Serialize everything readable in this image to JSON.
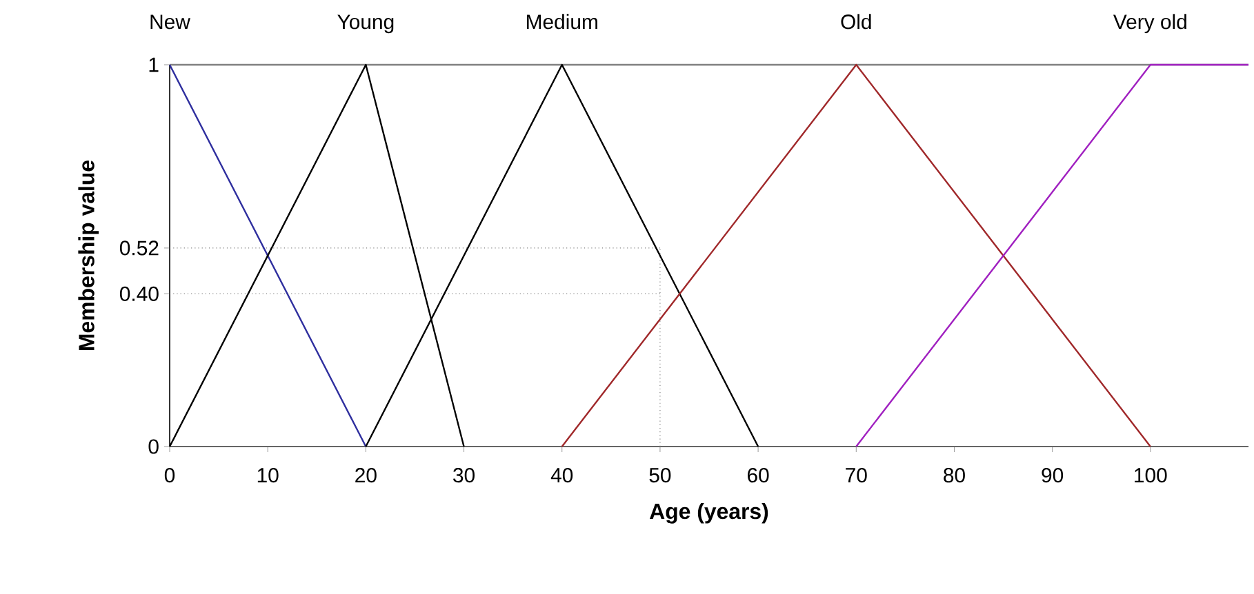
{
  "chart_data": {
    "type": "line",
    "xlabel": "Age (years)",
    "ylabel": "Membership value",
    "xlim": [
      0,
      110
    ],
    "ylim": [
      0,
      1
    ],
    "xticks": [
      0,
      10,
      20,
      30,
      40,
      50,
      60,
      70,
      80,
      90,
      100
    ],
    "yticks": [
      0,
      {
        "value": 0.4,
        "label": "0.40"
      },
      {
        "value": 0.52,
        "label": "0.52"
      },
      {
        "value": 1,
        "label": "1"
      }
    ],
    "series": [
      {
        "name": "New",
        "color": "#2e2e9e",
        "x": [
          0,
          20
        ],
        "values": [
          1,
          0
        ]
      },
      {
        "name": "Young",
        "color": "#000000",
        "x": [
          0,
          20,
          30
        ],
        "values": [
          0,
          1,
          0
        ]
      },
      {
        "name": "Medium",
        "color": "#000000",
        "x": [
          20,
          40,
          60
        ],
        "values": [
          0,
          1,
          0
        ]
      },
      {
        "name": "Old",
        "color": "#a0282a",
        "x": [
          40,
          70,
          100
        ],
        "values": [
          0,
          1,
          0
        ]
      },
      {
        "name": "Very old",
        "color": "#a020c0",
        "x": [
          70,
          100,
          110
        ],
        "values": [
          0,
          1,
          1
        ]
      }
    ],
    "ref_lines": [
      {
        "axis": "y",
        "value": 0.52,
        "line_style": "dotted",
        "color": "#808080"
      },
      {
        "axis": "y",
        "value": 0.4,
        "line_style": "dotted",
        "color": "#808080"
      },
      {
        "axis": "x",
        "value": 50,
        "line_style": "dotted",
        "color": "#808080"
      },
      {
        "axis": "y",
        "value": 1,
        "line_style": "solid",
        "color": "#808080"
      }
    ],
    "grid": false,
    "legend": false,
    "marker": "none",
    "line_style": "solid"
  }
}
